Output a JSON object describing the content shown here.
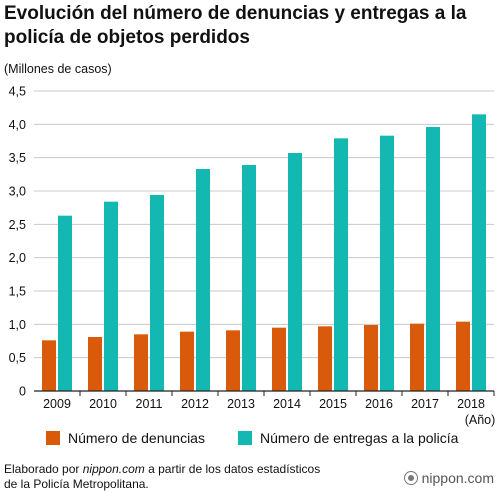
{
  "title": "Evolución del número de denuncias y entregas a la policía de objetos perdidos",
  "unit_label": "(Millones de casos)",
  "x_unit_label": "(Año)",
  "source": {
    "prefix": "Elaborado por ",
    "site": "nippon.com",
    "suffix": " a partir de los datos estadísticos",
    "line2": "de la Policía Metropolitana."
  },
  "logo": "nippon.com",
  "colors": {
    "denuncias": "#d95a0b",
    "entregas": "#14b8b2",
    "grid": "#c8c8c8",
    "axis": "#222222"
  },
  "chart_data": {
    "type": "bar",
    "categories": [
      "2009",
      "2010",
      "2011",
      "2012",
      "2013",
      "2014",
      "2015",
      "2016",
      "2017",
      "2018"
    ],
    "series": [
      {
        "name": "Número de denuncias",
        "values": [
          0.76,
          0.81,
          0.85,
          0.89,
          0.91,
          0.95,
          0.97,
          0.99,
          1.01,
          1.04
        ]
      },
      {
        "name": "Número de entregas a la policía",
        "values": [
          2.63,
          2.84,
          2.94,
          3.33,
          3.39,
          3.57,
          3.79,
          3.83,
          3.96,
          4.15
        ]
      }
    ],
    "yticks": [
      "0",
      "0,5",
      "1,0",
      "1,5",
      "2,0",
      "2,5",
      "3,0",
      "3,5",
      "4,0",
      "4,5"
    ],
    "ylim": [
      0,
      4.5
    ],
    "grid": true,
    "legend": "bottom"
  }
}
